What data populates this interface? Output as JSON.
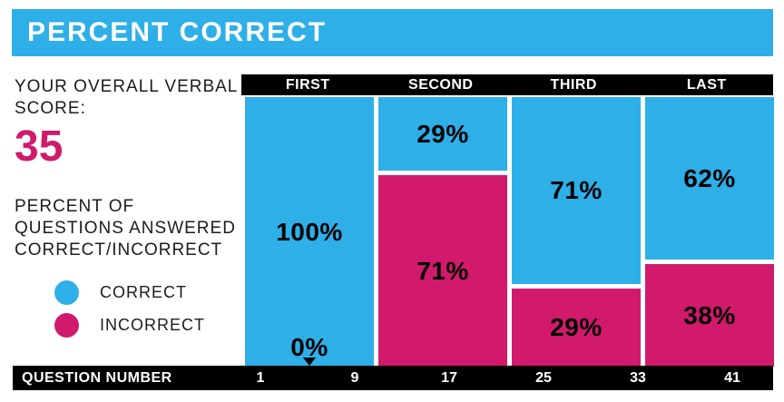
{
  "colors": {
    "correct_blue": "#2FAFE8",
    "incorrect_pink": "#D11A6B",
    "bar_black": "#000000",
    "text_dark": "#1c1c1c",
    "title_text": "#ffffff"
  },
  "header": {
    "title": "PERCENT CORRECT"
  },
  "sidebar": {
    "score_label": "YOUR OVERALL VERBAL SCORE:",
    "score_value": "35",
    "description": "PERCENT OF QUESTIONS ANSWERED CORRECT/INCORRECT"
  },
  "chart_data": {
    "type": "bar",
    "title": "PERCENT CORRECT",
    "subtitle": "",
    "categories": [
      "FIRST",
      "SECOND",
      "THIRD",
      "LAST"
    ],
    "series": [
      {
        "name": "CORRECT",
        "color": "#2FAFE8",
        "values": [
          100,
          29,
          71,
          62
        ],
        "labels": [
          "100%",
          "29%",
          "71%",
          "62%"
        ]
      },
      {
        "name": "INCORRECT",
        "color": "#D11A6B",
        "values": [
          0,
          71,
          29,
          38
        ],
        "labels": [
          "0%",
          "71%",
          "29%",
          "38%"
        ]
      }
    ],
    "stacked": true,
    "ylim": [
      0,
      100
    ],
    "grid": false,
    "legend_position": "left",
    "x_axis": {
      "label": "QUESTION NUMBER",
      "ticks": [
        1,
        9,
        17,
        25,
        33,
        41
      ]
    }
  }
}
